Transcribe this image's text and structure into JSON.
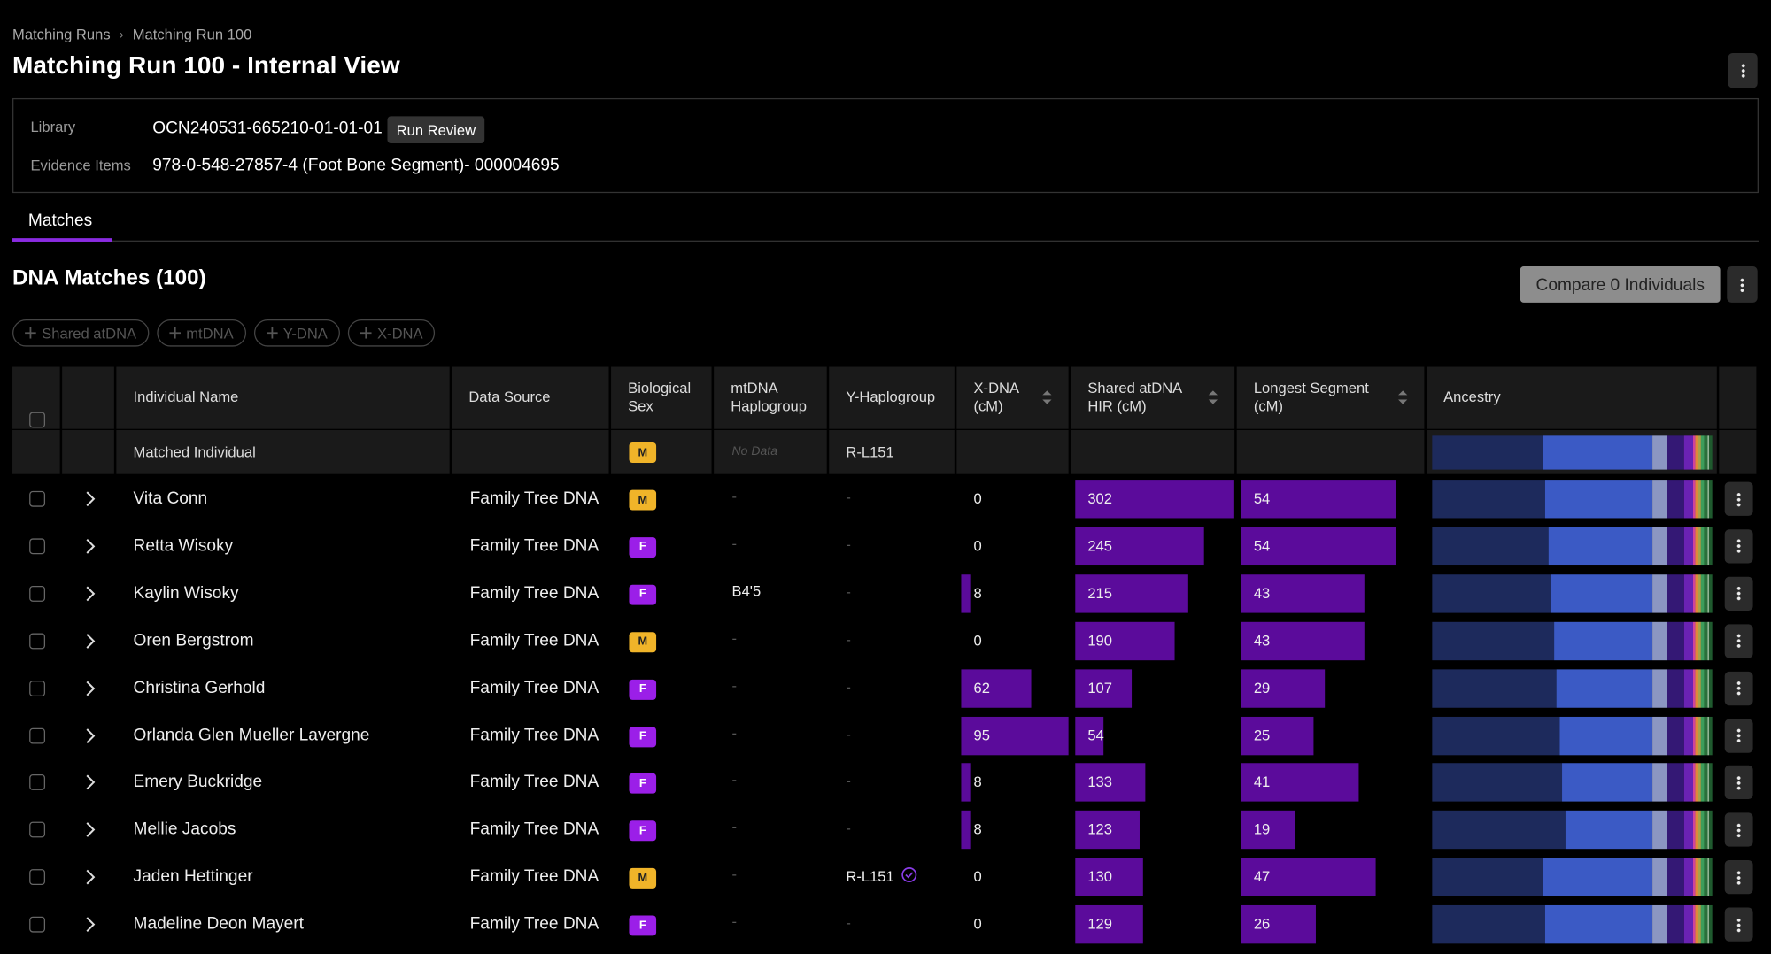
{
  "breadcrumb": [
    "Matching Runs",
    "Matching Run 100"
  ],
  "title": "Matching Run 100 - Internal View",
  "info": {
    "library_label": "Library",
    "library": "OCN240531-665210-01-01-01",
    "run_review": "Run Review",
    "evidence_label": "Evidence Items",
    "evidence": "978-0-548-27857-4 (Foot Bone Segment)- 000004695"
  },
  "tabs": [
    "Matches"
  ],
  "section": {
    "title": "DNA Matches (100)",
    "compare": "Compare 0 Individuals"
  },
  "filters": [
    "Shared atDNA",
    "mtDNA",
    "Y-DNA",
    "X-DNA"
  ],
  "table": {
    "headers": [
      "Individual Name",
      "Data Source",
      "Biological Sex",
      "mtDNA Haplogroup",
      "Y-Haplogroup",
      "X-DNA (cM)",
      "Shared atDNA HIR (cM)",
      "Longest Segment (cM)",
      "Ancestry"
    ],
    "reference": {
      "name": "Matched Individual",
      "sex": "M",
      "mtdna": "No Data",
      "yhap": "R-L151"
    },
    "rows": [
      {
        "name": "Vita Conn",
        "source": "Family Tree DNA",
        "sex": "M",
        "mtdna": "-",
        "yhap": "-",
        "x_dna": 0,
        "shared": 302,
        "longest": 54
      },
      {
        "name": "Retta Wisoky",
        "source": "Family Tree DNA",
        "sex": "F",
        "mtdna": "-",
        "yhap": "-",
        "x_dna": 0,
        "shared": 245,
        "longest": 54
      },
      {
        "name": "Kaylin Wisoky",
        "source": "Family Tree DNA",
        "sex": "F",
        "mtdna": "B4'5",
        "yhap": "-",
        "x_dna": 8,
        "shared": 215,
        "longest": 43
      },
      {
        "name": "Oren Bergstrom",
        "source": "Family Tree DNA",
        "sex": "M",
        "mtdna": "-",
        "yhap": "-",
        "x_dna": 0,
        "shared": 190,
        "longest": 43
      },
      {
        "name": "Christina Gerhold",
        "source": "Family Tree DNA",
        "sex": "F",
        "mtdna": "-",
        "yhap": "-",
        "x_dna": 62,
        "shared": 107,
        "longest": 29
      },
      {
        "name": "Orlanda Glen Mueller Lavergne",
        "source": "Family Tree DNA",
        "sex": "F",
        "mtdna": "-",
        "yhap": "-",
        "x_dna": 95,
        "shared": 54,
        "longest": 25
      },
      {
        "name": "Emery Buckridge",
        "source": "Family Tree DNA",
        "sex": "F",
        "mtdna": "-",
        "yhap": "-",
        "x_dna": 8,
        "shared": 133,
        "longest": 41
      },
      {
        "name": "Mellie Jacobs",
        "source": "Family Tree DNA",
        "sex": "F",
        "mtdna": "-",
        "yhap": "-",
        "x_dna": 8,
        "shared": 123,
        "longest": 19
      },
      {
        "name": "Jaden Hettinger",
        "source": "Family Tree DNA",
        "sex": "M",
        "mtdna": "-",
        "yhap": "R-L151",
        "yhap_verified": true,
        "x_dna": 0,
        "shared": 130,
        "longest": 47
      },
      {
        "name": "Madeline Deon Mayert",
        "source": "Family Tree DNA",
        "sex": "F",
        "mtdna": "-",
        "yhap": "-",
        "x_dna": 0,
        "shared": 129,
        "longest": 26
      }
    ]
  }
}
